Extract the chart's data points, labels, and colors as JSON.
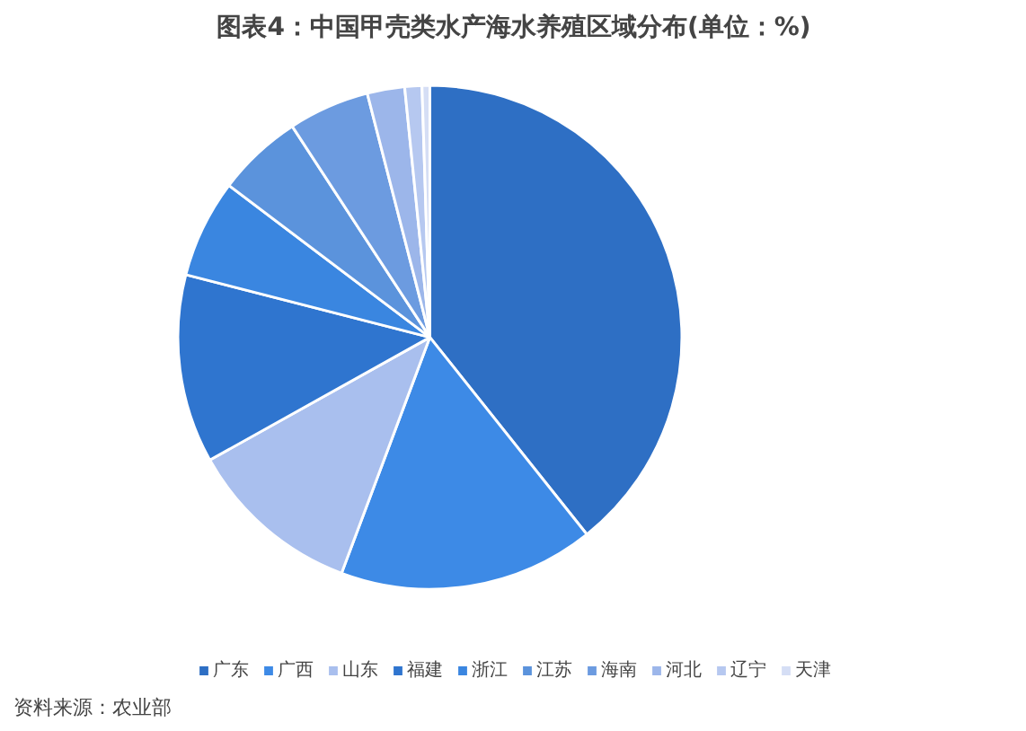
{
  "chart_data": {
    "type": "pie",
    "title": "图表4：中国甲壳类水产海水养殖区域分布(单位：%)",
    "categories": [
      "广东",
      "广西",
      "山东",
      "福建",
      "浙江",
      "江苏",
      "海南",
      "河北",
      "辽宁",
      "天津"
    ],
    "values": [
      39.3,
      16.4,
      11.2,
      12.1,
      6.3,
      5.5,
      5.2,
      2.4,
      1.1,
      0.5
    ],
    "colors": [
      "#2e6fc4",
      "#3d8ae6",
      "#a9bfee",
      "#2f75cf",
      "#3a86e0",
      "#5b93dc",
      "#6c9be0",
      "#9cb6ea",
      "#b6c8f0",
      "#d5def5"
    ],
    "legend": "bottom",
    "annotations": [
      "资料来源：农业部"
    ]
  }
}
